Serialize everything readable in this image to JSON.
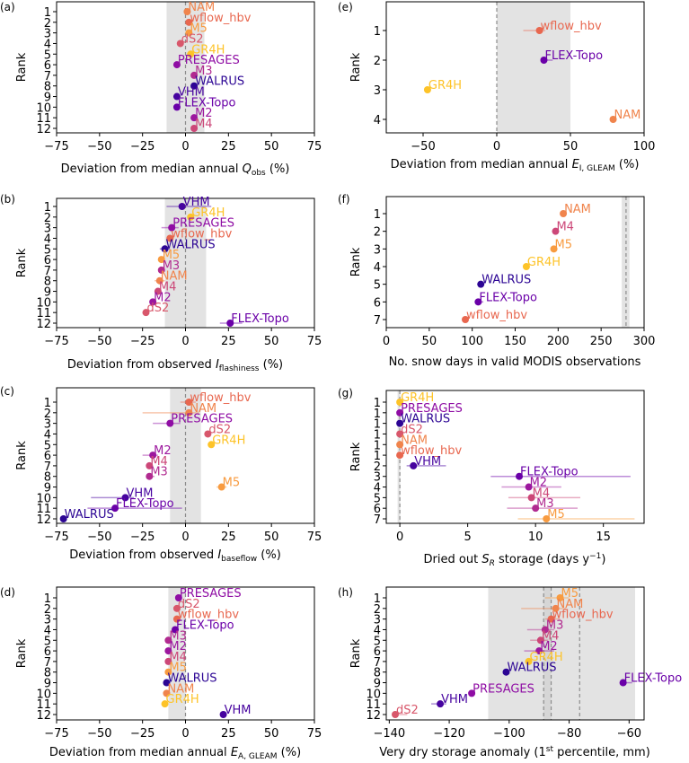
{
  "chart_data": [
    {
      "id": "a",
      "panel_label": "(a)",
      "type": "scatter",
      "xlabel_parts": [
        {
          "t": "Deviation from median annual "
        },
        {
          "t": "Q",
          "i": true
        },
        {
          "t": "obs",
          "sub": true
        },
        {
          "t": " (%)"
        }
      ],
      "ylabel": "Rank",
      "xlim": [
        -75,
        75
      ],
      "xticks": [
        -75,
        -50,
        -25,
        0,
        25,
        50,
        75
      ],
      "xtick_labels": [
        "−75",
        "−50",
        "−25",
        "0",
        "25",
        "50",
        "75"
      ],
      "ylim": [
        0.5,
        12.5
      ],
      "ytick_labels": [
        "1",
        "2",
        "3",
        "4",
        "5",
        "6",
        "7",
        "8",
        "9",
        "10",
        "11",
        "12"
      ],
      "band": [
        -11,
        11
      ],
      "ref_lines": [
        0
      ],
      "points": [
        {
          "rank": 1,
          "label": "NAM",
          "x": 1,
          "color": "#f0844c"
        },
        {
          "rank": 2,
          "label": "wflow_hbv",
          "x": 2,
          "color": "#e8674f"
        },
        {
          "rank": 3,
          "label": "M5",
          "x": 2,
          "color": "#f89b40"
        },
        {
          "rank": 4,
          "label": "dS2",
          "x": -3,
          "color": "#d8576b"
        },
        {
          "rank": 5,
          "label": "GR4H",
          "x": 3,
          "color": "#fdc328"
        },
        {
          "rank": 6,
          "label": "PRESAGES",
          "x": -5,
          "color": "#8f0da4"
        },
        {
          "rank": 7,
          "label": "M3",
          "x": 5,
          "color": "#b12a90"
        },
        {
          "rank": 8,
          "label": "WALRUS",
          "x": 5,
          "color": "#2c0594"
        },
        {
          "rank": 9,
          "label": "VHM",
          "x": -5,
          "color": "#46039f"
        },
        {
          "rank": 10,
          "label": "FLEX-Topo",
          "x": -5,
          "color": "#6a00a8"
        },
        {
          "rank": 11,
          "label": "M2",
          "x": 5,
          "color": "#9c179e"
        },
        {
          "rank": 12,
          "label": "M4",
          "x": 5,
          "color": "#cc4778"
        }
      ]
    },
    {
      "id": "b",
      "panel_label": "(b)",
      "type": "scatter",
      "xlabel_parts": [
        {
          "t": "Deviation from observed "
        },
        {
          "t": "I",
          "i": true
        },
        {
          "t": "flashiness",
          "sub": true
        },
        {
          "t": " (%)"
        }
      ],
      "ylabel": "Rank",
      "xlim": [
        -75,
        75
      ],
      "xticks": [
        -75,
        -50,
        -25,
        0,
        25,
        50,
        75
      ],
      "xtick_labels": [
        "−75",
        "−50",
        "−25",
        "0",
        "25",
        "50",
        "75"
      ],
      "ylim": [
        0.5,
        12.5
      ],
      "ytick_labels": [
        "1",
        "2",
        "3",
        "4",
        "5",
        "6",
        "7",
        "8",
        "9",
        "10",
        "11",
        "12"
      ],
      "band": [
        -12,
        12
      ],
      "ref_lines": [
        0
      ],
      "points": [
        {
          "rank": 1,
          "label": "VHM",
          "x": -2,
          "err": [
            -11,
            15
          ],
          "color": "#46039f"
        },
        {
          "rank": 2,
          "label": "GR4H",
          "x": 3,
          "color": "#fdc328"
        },
        {
          "rank": 3,
          "label": "PRESAGES",
          "x": -8,
          "err": [
            -14,
            -4
          ],
          "color": "#8f0da4"
        },
        {
          "rank": 4,
          "label": "wflow_hbv",
          "x": -9,
          "color": "#e8674f"
        },
        {
          "rank": 5,
          "label": "WALRUS",
          "x": -12,
          "err": [
            -15,
            -9
          ],
          "color": "#2c0594"
        },
        {
          "rank": 6,
          "label": "M5",
          "x": -14,
          "color": "#f89b40"
        },
        {
          "rank": 7,
          "label": "M3",
          "x": -14,
          "color": "#b12a90"
        },
        {
          "rank": 8,
          "label": "NAM",
          "x": -15,
          "err": [
            -18,
            -12
          ],
          "color": "#f0844c"
        },
        {
          "rank": 9,
          "label": "M4",
          "x": -16,
          "color": "#cc4778"
        },
        {
          "rank": 10,
          "label": "M2",
          "x": -19,
          "color": "#9c179e"
        },
        {
          "rank": 11,
          "label": "dS2",
          "x": -23,
          "color": "#d8576b"
        },
        {
          "rank": 12,
          "label": "FLEX-Topo",
          "x": 26,
          "err": [
            20,
            33
          ],
          "color": "#6a00a8"
        }
      ]
    },
    {
      "id": "c",
      "panel_label": "(c)",
      "type": "scatter",
      "xlabel_parts": [
        {
          "t": "Deviation from observed "
        },
        {
          "t": "I",
          "i": true
        },
        {
          "t": "baseflow",
          "sub": true
        },
        {
          "t": " (%)"
        }
      ],
      "ylabel": "Rank",
      "xlim": [
        -75,
        75
      ],
      "xticks": [
        -75,
        -50,
        -25,
        0,
        25,
        50,
        75
      ],
      "xtick_labels": [
        "−75",
        "−50",
        "−25",
        "0",
        "25",
        "50",
        "75"
      ],
      "ylim": [
        0.5,
        12.5
      ],
      "ytick_labels": [
        "1",
        "2",
        "3",
        "4",
        "5",
        "6",
        "7",
        "8",
        "9",
        "10",
        "11",
        "12"
      ],
      "band": [
        -9,
        9
      ],
      "ref_lines": [
        0
      ],
      "points": [
        {
          "rank": 1,
          "label": "wflow_hbv",
          "x": 2,
          "err": [
            -3,
            6
          ],
          "color": "#e8674f"
        },
        {
          "rank": 2,
          "label": "NAM",
          "x": 2,
          "err": [
            -25,
            8
          ],
          "color": "#f0844c"
        },
        {
          "rank": 3,
          "label": "PRESAGES",
          "x": -9,
          "err": [
            -19,
            -3
          ],
          "color": "#8f0da4"
        },
        {
          "rank": 4,
          "label": "dS2",
          "x": 13,
          "color": "#d8576b"
        },
        {
          "rank": 5,
          "label": "GR4H",
          "x": 15,
          "color": "#fdc328"
        },
        {
          "rank": 6,
          "label": "M2",
          "x": -19,
          "err": [
            -25,
            -16
          ],
          "color": "#9c179e"
        },
        {
          "rank": 7,
          "label": "M4",
          "x": -21,
          "color": "#cc4778"
        },
        {
          "rank": 8,
          "label": "M3",
          "x": -21,
          "err": [
            -23,
            -18
          ],
          "color": "#b12a90"
        },
        {
          "rank": 9,
          "label": "M5",
          "x": 21,
          "err": [
            18,
            24
          ],
          "color": "#f89b40"
        },
        {
          "rank": 10,
          "label": "VHM",
          "x": -35,
          "err": [
            -55,
            -30
          ],
          "color": "#46039f"
        },
        {
          "rank": 11,
          "label": "FLEX-Topo",
          "x": -41,
          "err": [
            -57,
            -2
          ],
          "color": "#6a00a8"
        },
        {
          "rank": 12,
          "label": "WALRUS",
          "x": -71,
          "color": "#2c0594"
        }
      ]
    },
    {
      "id": "d",
      "panel_label": "(d)",
      "type": "scatter",
      "xlabel_parts": [
        {
          "t": "Deviation from median annual "
        },
        {
          "t": "E",
          "i": true
        },
        {
          "t": "A, GLEAM",
          "sub": true
        },
        {
          "t": " (%)"
        }
      ],
      "ylabel": "Rank",
      "xlim": [
        -75,
        75
      ],
      "xticks": [
        -75,
        -50,
        -25,
        0,
        25,
        50,
        75
      ],
      "xtick_labels": [
        "−75",
        "−50",
        "−25",
        "0",
        "25",
        "50",
        "75"
      ],
      "ylim": [
        0.5,
        12.5
      ],
      "ytick_labels": [
        "1",
        "2",
        "3",
        "4",
        "5",
        "6",
        "7",
        "8",
        "9",
        "10",
        "11",
        "12"
      ],
      "band": [
        -10,
        0
      ],
      "ref_lines": [
        0
      ],
      "points": [
        {
          "rank": 1,
          "label": "PRESAGES",
          "x": -4,
          "color": "#8f0da4"
        },
        {
          "rank": 2,
          "label": "dS2",
          "x": -5,
          "color": "#d8576b"
        },
        {
          "rank": 3,
          "label": "wflow_hbv",
          "x": -5,
          "color": "#e8674f"
        },
        {
          "rank": 4,
          "label": "FLEX-Topo",
          "x": -6,
          "color": "#6a00a8"
        },
        {
          "rank": 5,
          "label": "M3",
          "x": -10,
          "color": "#b12a90"
        },
        {
          "rank": 6,
          "label": "M2",
          "x": -10,
          "color": "#9c179e"
        },
        {
          "rank": 7,
          "label": "M4",
          "x": -10,
          "color": "#cc4778"
        },
        {
          "rank": 8,
          "label": "M5",
          "x": -10,
          "color": "#f89b40"
        },
        {
          "rank": 9,
          "label": "WALRUS",
          "x": -11,
          "color": "#2c0594"
        },
        {
          "rank": 10,
          "label": "NAM",
          "x": -11,
          "color": "#f0844c"
        },
        {
          "rank": 11,
          "label": "GR4H",
          "x": -12,
          "color": "#fdc328"
        },
        {
          "rank": 12,
          "label": "VHM",
          "x": 22,
          "color": "#46039f"
        }
      ]
    },
    {
      "id": "e",
      "panel_label": "(e)",
      "type": "scatter",
      "xlabel_parts": [
        {
          "t": "Deviation from median annual "
        },
        {
          "t": "E",
          "i": true
        },
        {
          "t": "I, GLEAM",
          "sub": true
        },
        {
          "t": " (%)"
        }
      ],
      "ylabel": "Rank",
      "xlim": [
        -75,
        100
      ],
      "xticks": [
        -50,
        0,
        50,
        100
      ],
      "xtick_labels": [
        "−50",
        "0",
        "50",
        "100"
      ],
      "ylim": [
        0.3,
        4.5
      ],
      "ytick_labels": [
        "1",
        "2",
        "3",
        "4"
      ],
      "band": [
        0,
        50
      ],
      "ref_lines": [
        0
      ],
      "points": [
        {
          "rank": 1,
          "label": "wflow_hbv",
          "x": 29,
          "err": [
            18,
            33
          ],
          "color": "#e8674f"
        },
        {
          "rank": 2,
          "label": "FLEX-Topo",
          "x": 32,
          "err": [
            31,
            38
          ],
          "color": "#6a00a8"
        },
        {
          "rank": 3,
          "label": "GR4H",
          "x": -47,
          "color": "#fdc328"
        },
        {
          "rank": 4,
          "label": "NAM",
          "x": 79,
          "color": "#f0844c"
        }
      ]
    },
    {
      "id": "f",
      "panel_label": "(f)",
      "type": "scatter",
      "xlabel_parts": [
        {
          "t": "No. snow days in valid MODIS observations"
        }
      ],
      "ylabel": "Rank",
      "xlim": [
        0,
        300
      ],
      "xticks": [
        0,
        50,
        100,
        150,
        200,
        250,
        300
      ],
      "xtick_labels": [
        "0",
        "50",
        "100",
        "150",
        "200",
        "250",
        "300"
      ],
      "ylim": [
        0.05,
        7.45
      ],
      "ytick_labels": [
        "1",
        "2",
        "3",
        "4",
        "5",
        "6",
        "7"
      ],
      "band": [
        274,
        283
      ],
      "ref_lines": [
        279
      ],
      "points": [
        {
          "rank": 1,
          "label": "NAM",
          "x": 206,
          "color": "#f0844c"
        },
        {
          "rank": 2,
          "label": "M4",
          "x": 197,
          "color": "#cc4778"
        },
        {
          "rank": 3,
          "label": "M5",
          "x": 195,
          "color": "#f89b40"
        },
        {
          "rank": 4,
          "label": "GR4H",
          "x": 163,
          "color": "#fdc328"
        },
        {
          "rank": 5,
          "label": "WALRUS",
          "x": 110,
          "color": "#2c0594"
        },
        {
          "rank": 6,
          "label": "FLEX-Topo",
          "x": 107,
          "err": [
            103,
            113
          ],
          "color": "#6a00a8"
        },
        {
          "rank": 7,
          "label": "wflow_hbv",
          "x": 92,
          "color": "#e8674f"
        }
      ]
    },
    {
      "id": "g",
      "panel_label": "(g)",
      "type": "scatter",
      "xlabel_parts": [
        {
          "t": "Dried out "
        },
        {
          "t": "S",
          "i": true
        },
        {
          "t": "R",
          "sub": true,
          "i": true
        },
        {
          "t": " storage (days y"
        },
        {
          "t": "−1",
          "sup": true
        },
        {
          "t": ")"
        }
      ],
      "ylabel": "Rank",
      "xlim": [
        -1,
        18
      ],
      "xticks": [
        0,
        5,
        10,
        15
      ],
      "xtick_labels": [
        "0",
        "5",
        "10",
        "15"
      ],
      "ylim": [
        0.5,
        12.5
      ],
      "ytick_labels": [
        "1",
        "1",
        "1",
        "1",
        "1",
        "1",
        "2",
        "3",
        "4",
        "5",
        "6",
        "7"
      ],
      "band": null,
      "ref_lines": [
        0
      ],
      "ref_band_narrow": [
        -0.1,
        0.1
      ],
      "points": [
        {
          "rank": 1,
          "label": "GR4H",
          "x": 0,
          "color": "#fdc328"
        },
        {
          "rank": 2,
          "label": "PRESAGES",
          "x": 0,
          "color": "#8f0da4"
        },
        {
          "rank": 3,
          "label": "WALRUS",
          "x": 0,
          "color": "#2c0594"
        },
        {
          "rank": 4,
          "label": "dS2",
          "x": 0,
          "color": "#d8576b"
        },
        {
          "rank": 5,
          "label": "NAM",
          "x": 0,
          "color": "#f0844c"
        },
        {
          "rank": 6,
          "label": "wflow_hbv",
          "x": 0,
          "color": "#e8674f"
        },
        {
          "rank": 7,
          "label": "VHM",
          "x": 1,
          "err": [
            0.5,
            3.4
          ],
          "color": "#46039f"
        },
        {
          "rank": 8,
          "label": "FLEX-Topo",
          "x": 8.8,
          "err": [
            6.7,
            17
          ],
          "color": "#6a00a8"
        },
        {
          "rank": 9,
          "label": "M2",
          "x": 9.5,
          "err": [
            7.5,
            11.9
          ],
          "color": "#9c179e"
        },
        {
          "rank": 10,
          "label": "M4",
          "x": 9.7,
          "err": [
            8,
            13.3
          ],
          "color": "#cc4778"
        },
        {
          "rank": 11,
          "label": "M3",
          "x": 10,
          "err": [
            7.9,
            13.1
          ],
          "color": "#b12a90"
        },
        {
          "rank": 12,
          "label": "M5",
          "x": 10.8,
          "err": [
            8.7,
            17.3
          ],
          "color": "#f89b40"
        }
      ]
    },
    {
      "id": "h",
      "panel_label": "(h)",
      "type": "scatter",
      "xlabel_parts": [
        {
          "t": "Very dry storage anomaly (1"
        },
        {
          "t": "st",
          "sup": true
        },
        {
          "t": " percentile, mm)"
        }
      ],
      "ylabel": "Rank",
      "xlim": [
        -141,
        -55
      ],
      "xticks": [
        -140,
        -120,
        -100,
        -80,
        -60
      ],
      "xtick_labels": [
        "−140",
        "−120",
        "−100",
        "−80",
        "−60"
      ],
      "ylim": [
        0.5,
        12.5
      ],
      "ytick_labels": [
        "1",
        "2",
        "3",
        "4",
        "5",
        "6",
        "7",
        "8",
        "9",
        "10",
        "11",
        "12"
      ],
      "band": [
        -107,
        -58
      ],
      "band_inner": [
        -88.5,
        -86
      ],
      "ref_lines": [
        -88.5,
        -86,
        -76.5
      ],
      "points": [
        {
          "rank": 1,
          "label": "M5",
          "x": -83,
          "err": [
            -88,
            -80
          ],
          "color": "#f89b40"
        },
        {
          "rank": 2,
          "label": "NAM",
          "x": -84.5,
          "err": [
            -96,
            -81
          ],
          "color": "#f0844c"
        },
        {
          "rank": 3,
          "label": "wflow_hbv",
          "x": -86,
          "err": [
            -88,
            -83
          ],
          "color": "#e8674f"
        },
        {
          "rank": 4,
          "label": "M3",
          "x": -88,
          "err": [
            -94,
            -85
          ],
          "color": "#b12a90"
        },
        {
          "rank": 5,
          "label": "M4",
          "x": -89.5,
          "err": [
            -93,
            -87
          ],
          "color": "#cc4778"
        },
        {
          "rank": 6,
          "label": "M2",
          "x": -90,
          "err": [
            -95,
            -85
          ],
          "color": "#9c179e"
        },
        {
          "rank": 7,
          "label": "GR4H",
          "x": -93.5,
          "color": "#fdc328"
        },
        {
          "rank": 8,
          "label": "WALRUS",
          "x": -101,
          "color": "#2c0594"
        },
        {
          "rank": 9,
          "label": "FLEX-Topo",
          "x": -62,
          "err": [
            -63,
            -59
          ],
          "color": "#6a00a8"
        },
        {
          "rank": 10,
          "label": "PRESAGES",
          "x": -112.5,
          "color": "#8f0da4"
        },
        {
          "rank": 11,
          "label": "VHM",
          "x": -123,
          "err": [
            -126,
            -121
          ],
          "color": "#46039f"
        },
        {
          "rank": 12,
          "label": "dS2",
          "x": -138,
          "err": [
            -139,
            -134
          ],
          "color": "#d8576b"
        }
      ]
    }
  ]
}
